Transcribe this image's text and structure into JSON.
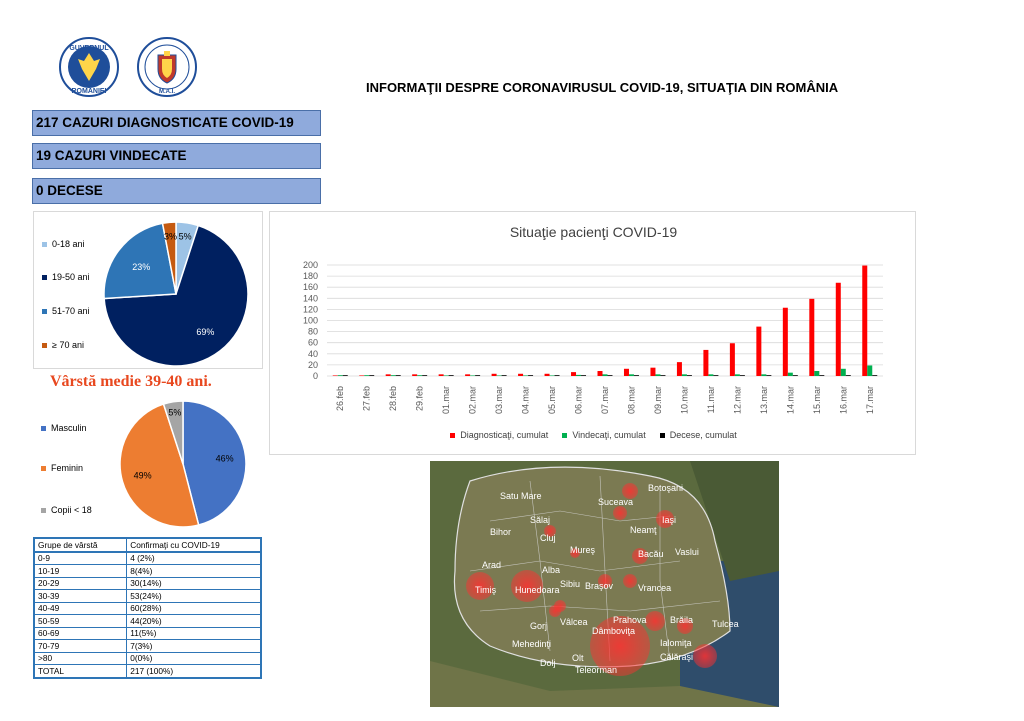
{
  "title": "INFORMAŢII DESPRE CORONAVIRUSUL COVID-19, SITUAŢIA DIN ROMÂNIA",
  "logos": [
    {
      "name": "guvernul-romaniei-logo",
      "text_top": "GUVERNUL",
      "text_bottom": "ROMÂNIEI",
      "color": "#1f4e9a"
    },
    {
      "name": "mai-logo",
      "text_bottom": "M.A.I.",
      "color": "#1f4e9a"
    }
  ],
  "stats": {
    "diagnosed": "217 CAZURI DIAGNOSTICATE COVID-19",
    "recovered": "19 CAZURI VINDECATE",
    "deaths": "0 DECESE"
  },
  "average_age": "Vârstă medie 39-40 ani.",
  "chart_data": [
    {
      "type": "pie",
      "name": "age-pie",
      "categories": [
        "0-18 ani",
        "19-50 ani",
        "51-70 ani",
        "≥ 70 ani"
      ],
      "values": [
        5,
        69,
        23,
        3
      ],
      "labels": [
        "5%",
        "69%",
        "23%",
        "3%"
      ],
      "colors": [
        "#9dc3e6",
        "#002060",
        "#2e75b6",
        "#c55a11"
      ],
      "legend": "left"
    },
    {
      "type": "pie",
      "name": "gender-pie",
      "categories": [
        "Masculin",
        "Feminin",
        "Copii < 18"
      ],
      "values": [
        46,
        49,
        5
      ],
      "labels": [
        "46%",
        "49%",
        "5%"
      ],
      "colors": [
        "#4472c4",
        "#ed7d31",
        "#a5a5a5"
      ],
      "legend": "left"
    },
    {
      "type": "bar",
      "name": "patients-bar",
      "title": "Situaţie pacienţi COVID-19",
      "categories": [
        "26.feb",
        "27.feb",
        "28.feb",
        "29.feb",
        "01.mar",
        "02.mar",
        "03.mar",
        "04.mar",
        "05.mar",
        "06.mar",
        "07.mar",
        "08.mar",
        "09.mar",
        "10.mar",
        "11.mar",
        "12.mar",
        "13.mar",
        "14.mar",
        "15.mar",
        "16.mar",
        "17.mar"
      ],
      "series": [
        {
          "name": "Diagnosticaţi, cumulat",
          "color": "#ff0000",
          "values": [
            1,
            1,
            3,
            3,
            3,
            3,
            4,
            4,
            4,
            7,
            9,
            13,
            15,
            25,
            47,
            59,
            89,
            123,
            139,
            168,
            199
          ]
        },
        {
          "name": "Vindecaţi, cumulat",
          "color": "#00b050",
          "values": [
            0,
            0,
            0,
            0,
            1,
            1,
            1,
            1,
            1,
            2,
            3,
            3,
            3,
            3,
            3,
            3,
            3,
            6,
            9,
            13,
            19
          ]
        },
        {
          "name": "Decese, cumulat",
          "color": "#000000",
          "values": [
            0,
            0,
            0,
            0,
            0,
            0,
            0,
            0,
            0,
            0,
            0,
            0,
            0,
            0,
            0,
            0,
            0,
            0,
            0,
            0,
            0
          ]
        }
      ],
      "yticks": [
        0,
        20,
        40,
        60,
        80,
        100,
        120,
        140,
        160,
        180,
        200
      ],
      "ylim": [
        0,
        200
      ],
      "grid": true,
      "legend": "bottom"
    }
  ],
  "age_table": {
    "headers": [
      "Grupe de vârstă",
      "Confirmaţi cu COVID-19"
    ],
    "rows": [
      [
        "0-9",
        "4 (2%)"
      ],
      [
        "10-19",
        "8(4%)"
      ],
      [
        "20-29",
        "30(14%)"
      ],
      [
        "30-39",
        "53(24%)"
      ],
      [
        "40-49",
        "60(28%)"
      ],
      [
        "50-59",
        "44(20%)"
      ],
      [
        "60-69",
        "11(5%)"
      ],
      [
        "70-79",
        "7(3%)"
      ],
      [
        ">80",
        "0(0%)"
      ],
      [
        "TOTAL",
        "217 (100%)"
      ]
    ]
  },
  "map": {
    "counties": [
      "Satu Mare",
      "Botoşani",
      "Suceava",
      "Iaşi",
      "Sălaj",
      "Bihor",
      "Cluj",
      "Neamţ",
      "Mureş",
      "Bacău",
      "Vaslui",
      "Arad",
      "Alba",
      "Sibiu",
      "Braşov",
      "Vrancea",
      "Timiş",
      "Hunedoara",
      "Prahova",
      "Brăila",
      "Tulcea",
      "Gorj",
      "Vâlcea",
      "Dâmboviţa",
      "Ialomiţa",
      "Mehedinţi",
      "Călăraşi",
      "Olt",
      "Dolj",
      "Teleorman"
    ],
    "bubble_color": "#ff2020"
  }
}
